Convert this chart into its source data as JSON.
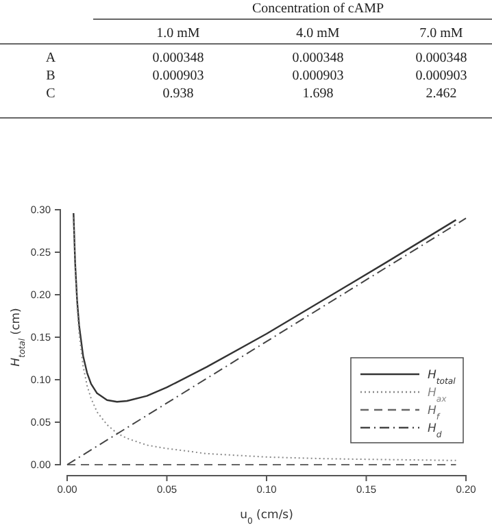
{
  "chart_data": [
    {
      "type": "other",
      "title": "Concentration of cAMP",
      "categories": [
        "1.0 mM",
        "4.0 mM",
        "7.0 mM"
      ],
      "y_categories": [
        "A",
        "B",
        "C"
      ],
      "cell_labels": [
        [
          "0.000348",
          "0.000348",
          "0.000348"
        ],
        [
          "0.000903",
          "0.000903",
          "0.000903"
        ],
        [
          "0.938",
          "1.698",
          "2.462"
        ]
      ]
    },
    {
      "type": "line",
      "xlabel": "u$_{0}$ (cm/s)",
      "ylabel": "H$_{total}$ (cm)",
      "xlim": [
        0,
        0.2
      ],
      "ylim": [
        0,
        0.3
      ],
      "xticks": [
        {
          "value": 0,
          "label": "0.00"
        },
        0.05,
        {
          "value": 0.1,
          "label": "0.10"
        },
        0.15,
        {
          "value": 0.2,
          "label": "0.20"
        }
      ],
      "yticks": [
        {
          "value": 0,
          "label": "0.00"
        },
        0.05,
        {
          "value": 0.1,
          "label": "0.10"
        },
        0.15,
        {
          "value": 0.2,
          "label": "0.20"
        },
        0.25,
        {
          "value": 0.3,
          "label": "0.30"
        }
      ],
      "grid": false,
      "legend": "bottom right",
      "marker": "none",
      "x": [
        0.0032,
        0.004,
        0.005,
        0.006,
        0.008,
        0.01,
        0.012,
        0.015,
        0.02,
        0.025,
        0.03,
        0.04,
        0.05,
        0.07,
        0.1,
        0.13,
        0.16,
        0.195
      ],
      "series": [
        {
          "name": "H$_{total}$",
          "color": "#333333",
          "line_style": "solid",
          "values": [
            0.296,
            0.238,
            0.193,
            0.164,
            0.128,
            0.108,
            0.095,
            0.084,
            0.076,
            0.074,
            0.075,
            0.081,
            0.091,
            0.115,
            0.154,
            0.196,
            0.238,
            0.288
          ]
        },
        {
          "name": "H$_{ax}$",
          "color": "#888888",
          "line_style": "dotted",
          "values": [
            0.291,
            0.233,
            0.186,
            0.155,
            0.116,
            0.093,
            0.078,
            0.062,
            0.047,
            0.037,
            0.031,
            0.023,
            0.019,
            0.013,
            0.009,
            0.007,
            0.006,
            0.005
          ]
        },
        {
          "name": "H$_{f}$",
          "color": "#666666",
          "line_style": "dashed",
          "x": [
            0,
            0.195
          ],
          "values": [
            0,
            0
          ]
        },
        {
          "name": "H$_{d}$",
          "color": "#444444",
          "line_style": "dashdot",
          "x": [
            0,
            0.2
          ],
          "values": [
            0,
            0.29
          ]
        }
      ]
    }
  ]
}
